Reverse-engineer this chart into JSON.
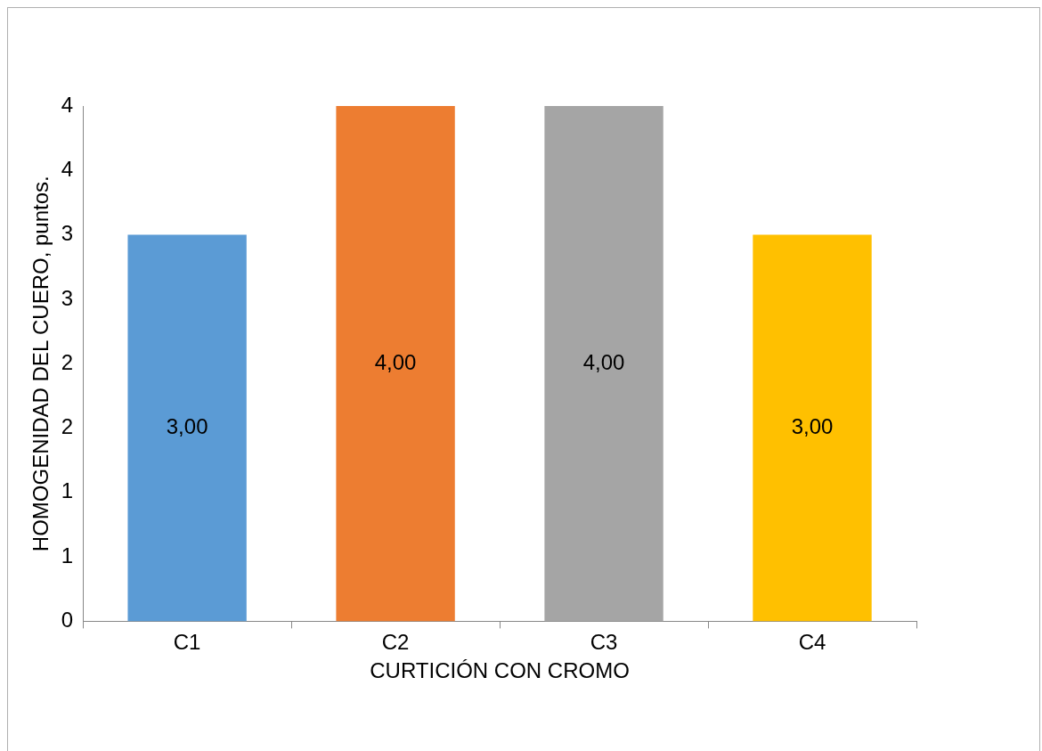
{
  "chart_data": {
    "type": "bar",
    "xlabel": "CURTICIÓN CON CROMO",
    "ylabel": "HOMOGENIDAD DEL CUERO, puntos.",
    "categories": [
      "C1",
      "C2",
      "C3",
      "C4"
    ],
    "values": [
      3,
      4,
      4,
      3
    ],
    "colors": [
      "#5b9bd5",
      "#ed7d31",
      "#a5a5a5",
      "#ffc000"
    ],
    "value_labels": [
      "3,00",
      "4,00",
      "4,00",
      "3,00"
    ],
    "ylim": [
      0,
      4
    ],
    "yticks": [
      0,
      {
        "value": 0.5,
        "label": "1"
      },
      1,
      {
        "value": 1.5,
        "label": "2"
      },
      2,
      {
        "value": 2.5,
        "label": "3"
      },
      3,
      {
        "value": 3.5,
        "label": "4"
      },
      4
    ],
    "grid": false,
    "legend": false
  }
}
